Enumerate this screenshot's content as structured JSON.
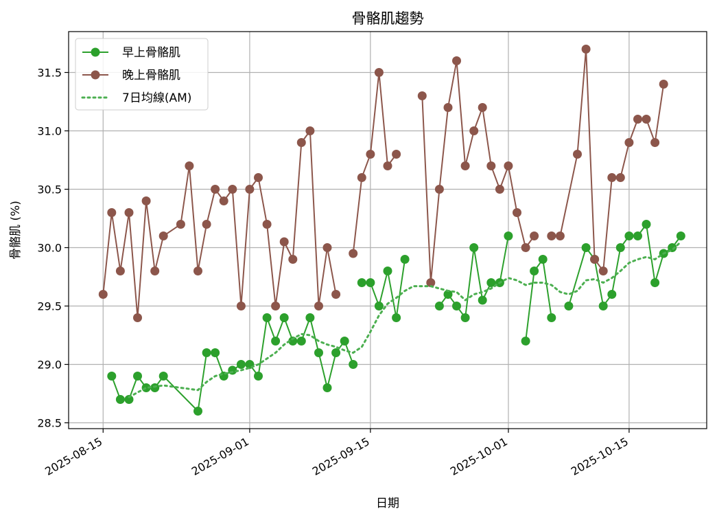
{
  "chart_data": {
    "type": "line",
    "title": "骨骼肌趨勢",
    "xlabel": "日期",
    "ylabel": "骨骼肌 (%)",
    "ylim": [
      28.45,
      31.85
    ],
    "xlim": [
      "2025-08-11",
      "2025-10-24"
    ],
    "grid": true,
    "legend_position": "top-left",
    "x_ticks": [
      "2025-08-15",
      "2025-09-01",
      "2025-09-15",
      "2025-10-01",
      "2025-10-15"
    ],
    "y_ticks": [
      28.5,
      29.0,
      29.5,
      30.0,
      30.5,
      31.0,
      31.5
    ],
    "series": [
      {
        "name": "早上骨骼肌",
        "color": "#2ca02c",
        "style": "solid-marker",
        "points": [
          [
            "2025-08-16",
            28.9
          ],
          [
            "2025-08-17",
            28.7
          ],
          [
            "2025-08-18",
            28.7
          ],
          [
            "2025-08-19",
            28.9
          ],
          [
            "2025-08-20",
            28.8
          ],
          [
            "2025-08-21",
            28.8
          ],
          [
            "2025-08-22",
            28.9
          ],
          [
            "2025-08-26",
            28.6
          ],
          [
            "2025-08-27",
            29.1
          ],
          [
            "2025-08-28",
            29.1
          ],
          [
            "2025-08-29",
            28.9
          ],
          [
            "2025-08-30",
            28.95
          ],
          [
            "2025-08-31",
            29.0
          ],
          [
            "2025-09-01",
            29.0
          ],
          [
            "2025-09-02",
            28.9
          ],
          [
            "2025-09-03",
            29.4
          ],
          [
            "2025-09-04",
            29.2
          ],
          [
            "2025-09-05",
            29.4
          ],
          [
            "2025-09-06",
            29.2
          ],
          [
            "2025-09-07",
            29.2
          ],
          [
            "2025-09-08",
            29.4
          ],
          [
            "2025-09-09",
            29.1
          ],
          [
            "2025-09-10",
            28.8
          ],
          [
            "2025-09-11",
            29.1
          ],
          [
            "2025-09-12",
            29.2
          ],
          [
            "2025-09-13",
            29.0
          ],
          null,
          [
            "2025-09-14",
            29.7
          ],
          [
            "2025-09-15",
            29.7
          ],
          [
            "2025-09-16",
            29.5
          ],
          [
            "2025-09-17",
            29.8
          ],
          [
            "2025-09-18",
            29.4
          ],
          [
            "2025-09-19",
            29.9
          ],
          null,
          [
            "2025-09-23",
            29.5
          ],
          [
            "2025-09-24",
            29.6
          ],
          [
            "2025-09-25",
            29.5
          ],
          [
            "2025-09-26",
            29.4
          ],
          [
            "2025-09-27",
            30.0
          ],
          [
            "2025-09-28",
            29.55
          ],
          [
            "2025-09-29",
            29.7
          ],
          [
            "2025-09-30",
            29.7
          ],
          [
            "2025-10-01",
            30.1
          ],
          null,
          [
            "2025-10-03",
            29.2
          ],
          [
            "2025-10-04",
            29.8
          ],
          [
            "2025-10-05",
            29.9
          ],
          [
            "2025-10-06",
            29.4
          ],
          null,
          [
            "2025-10-08",
            29.5
          ],
          [
            "2025-10-10",
            30.0
          ],
          [
            "2025-10-11",
            29.9
          ],
          [
            "2025-10-12",
            29.5
          ],
          [
            "2025-10-13",
            29.6
          ],
          [
            "2025-10-14",
            30.0
          ],
          [
            "2025-10-15",
            30.1
          ],
          [
            "2025-10-16",
            30.1
          ],
          [
            "2025-10-17",
            30.2
          ],
          [
            "2025-10-18",
            29.7
          ],
          [
            "2025-10-19",
            29.95
          ],
          [
            "2025-10-20",
            30.0
          ],
          [
            "2025-10-21",
            30.1
          ]
        ]
      },
      {
        "name": "晚上骨骼肌",
        "color": "#8c564b",
        "style": "solid-marker",
        "points": [
          [
            "2025-08-15",
            29.6
          ],
          [
            "2025-08-16",
            30.3
          ],
          [
            "2025-08-17",
            29.8
          ],
          [
            "2025-08-18",
            30.3
          ],
          [
            "2025-08-19",
            29.4
          ],
          [
            "2025-08-20",
            30.4
          ],
          [
            "2025-08-21",
            29.8
          ],
          [
            "2025-08-22",
            30.1
          ],
          [
            "2025-08-24",
            30.2
          ],
          [
            "2025-08-25",
            30.7
          ],
          [
            "2025-08-26",
            29.8
          ],
          [
            "2025-08-27",
            30.2
          ],
          [
            "2025-08-28",
            30.5
          ],
          [
            "2025-08-29",
            30.4
          ],
          [
            "2025-08-30",
            30.5
          ],
          [
            "2025-08-31",
            29.5
          ],
          [
            "2025-09-01",
            30.5
          ],
          [
            "2025-09-02",
            30.6
          ],
          [
            "2025-09-03",
            30.2
          ],
          [
            "2025-09-04",
            29.5
          ],
          [
            "2025-09-05",
            30.05
          ],
          [
            "2025-09-06",
            29.9
          ],
          [
            "2025-09-07",
            30.9
          ],
          [
            "2025-09-08",
            31.0
          ],
          [
            "2025-09-09",
            29.5
          ],
          [
            "2025-09-10",
            30.0
          ],
          [
            "2025-09-11",
            29.6
          ],
          null,
          [
            "2025-09-13",
            29.95
          ],
          [
            "2025-09-14",
            30.6
          ],
          [
            "2025-09-15",
            30.8
          ],
          [
            "2025-09-16",
            31.5
          ],
          [
            "2025-09-17",
            30.7
          ],
          [
            "2025-09-18",
            30.8
          ],
          null,
          [
            "2025-09-21",
            31.3
          ],
          [
            "2025-09-22",
            29.7
          ],
          [
            "2025-09-23",
            30.5
          ],
          [
            "2025-09-24",
            31.2
          ],
          [
            "2025-09-25",
            31.6
          ],
          [
            "2025-09-26",
            30.7
          ],
          [
            "2025-09-27",
            31.0
          ],
          [
            "2025-09-28",
            31.2
          ],
          [
            "2025-09-29",
            30.7
          ],
          [
            "2025-09-30",
            30.5
          ],
          [
            "2025-10-01",
            30.7
          ],
          [
            "2025-10-02",
            30.3
          ],
          [
            "2025-10-03",
            30.0
          ],
          [
            "2025-10-04",
            30.1
          ],
          null,
          [
            "2025-10-06",
            30.1
          ],
          [
            "2025-10-07",
            30.1
          ],
          [
            "2025-10-09",
            30.8
          ],
          [
            "2025-10-10",
            31.7
          ],
          [
            "2025-10-11",
            29.9
          ],
          [
            "2025-10-12",
            29.8
          ],
          [
            "2025-10-13",
            30.6
          ],
          [
            "2025-10-14",
            30.6
          ],
          [
            "2025-10-15",
            30.9
          ],
          [
            "2025-10-16",
            31.1
          ],
          [
            "2025-10-17",
            31.1
          ],
          [
            "2025-10-18",
            30.9
          ],
          [
            "2025-10-19",
            31.4
          ]
        ]
      },
      {
        "name": "7日均線(AM)",
        "color": "#4caf50",
        "style": "dotted",
        "points": [
          [
            "2025-08-18",
            28.72
          ],
          [
            "2025-08-19",
            28.76
          ],
          [
            "2025-08-20",
            28.8
          ],
          [
            "2025-08-22",
            28.82
          ],
          [
            "2025-08-26",
            28.78
          ],
          [
            "2025-08-27",
            28.85
          ],
          [
            "2025-08-28",
            28.9
          ],
          [
            "2025-08-29",
            28.92
          ],
          [
            "2025-08-31",
            28.95
          ],
          [
            "2025-09-01",
            28.97
          ],
          [
            "2025-09-02",
            29.0
          ],
          [
            "2025-09-03",
            29.05
          ],
          [
            "2025-09-04",
            29.1
          ],
          [
            "2025-09-05",
            29.17
          ],
          [
            "2025-09-06",
            29.22
          ],
          [
            "2025-09-07",
            29.26
          ],
          [
            "2025-09-08",
            29.25
          ],
          [
            "2025-09-09",
            29.2
          ],
          [
            "2025-09-10",
            29.17
          ],
          [
            "2025-09-11",
            29.15
          ],
          [
            "2025-09-12",
            29.12
          ],
          [
            "2025-09-13",
            29.1
          ],
          [
            "2025-09-14",
            29.15
          ],
          [
            "2025-09-15",
            29.28
          ],
          [
            "2025-09-16",
            29.42
          ],
          [
            "2025-09-17",
            29.52
          ],
          [
            "2025-09-18",
            29.57
          ],
          [
            "2025-09-19",
            29.63
          ],
          [
            "2025-09-20",
            29.67
          ],
          [
            "2025-09-22",
            29.67
          ],
          [
            "2025-09-23",
            29.65
          ],
          [
            "2025-09-24",
            29.63
          ],
          [
            "2025-09-25",
            29.62
          ],
          [
            "2025-09-26",
            29.55
          ],
          [
            "2025-09-27",
            29.6
          ],
          [
            "2025-09-28",
            29.62
          ],
          [
            "2025-09-29",
            29.65
          ],
          [
            "2025-09-30",
            29.7
          ],
          [
            "2025-10-01",
            29.74
          ],
          [
            "2025-10-02",
            29.72
          ],
          [
            "2025-10-03",
            29.68
          ],
          [
            "2025-10-04",
            29.7
          ],
          [
            "2025-10-05",
            29.7
          ],
          [
            "2025-10-06",
            29.68
          ],
          [
            "2025-10-07",
            29.62
          ],
          [
            "2025-10-08",
            29.6
          ],
          [
            "2025-10-09",
            29.63
          ],
          [
            "2025-10-10",
            29.72
          ],
          [
            "2025-10-11",
            29.73
          ],
          [
            "2025-10-12",
            29.7
          ],
          [
            "2025-10-13",
            29.74
          ],
          [
            "2025-10-14",
            29.8
          ],
          [
            "2025-10-15",
            29.87
          ],
          [
            "2025-10-16",
            29.9
          ],
          [
            "2025-10-17",
            29.92
          ],
          [
            "2025-10-18",
            29.9
          ],
          [
            "2025-10-19",
            29.95
          ],
          [
            "2025-10-20",
            29.98
          ],
          [
            "2025-10-21",
            30.05
          ]
        ]
      }
    ]
  }
}
